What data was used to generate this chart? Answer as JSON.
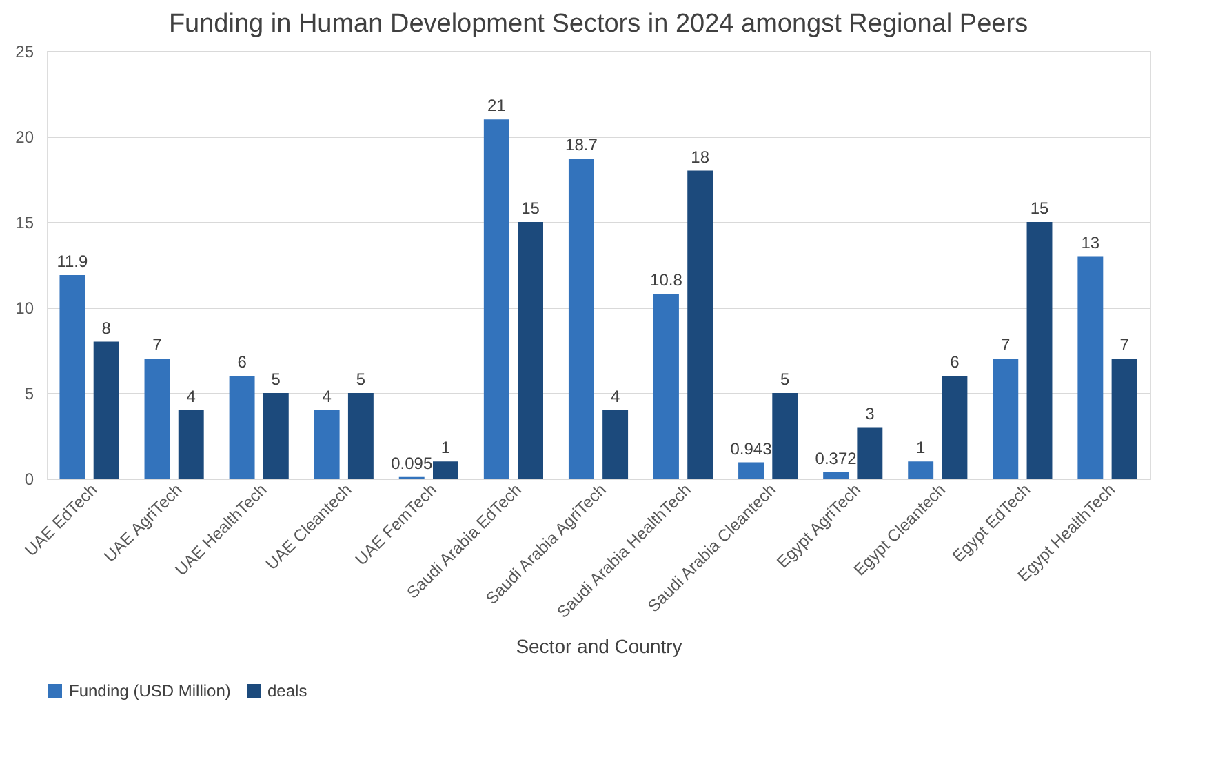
{
  "chart_data": {
    "type": "bar",
    "title": "Funding in Human Development Sectors in 2024 amongst Regional Peers",
    "xlabel": "Sector and Country",
    "categories": [
      "UAE EdTech",
      "UAE AgriTech",
      "UAE HealthTech",
      "UAE Cleantech",
      "UAE FemTech",
      "Saudi Arabia EdTech",
      "Saudi Arabia AgriTech",
      "Saudi Arabia HealthTech",
      "Saudi Arabia Cleantech",
      "Egypt AgriTech",
      "Egypt Cleantech",
      "Egypt EdTech",
      "Egypt HealthTech"
    ],
    "series": [
      {
        "name": "Funding (USD Million)",
        "color": "#3373bc",
        "values": [
          11.9,
          7,
          6,
          4,
          0.095,
          21,
          18.7,
          10.8,
          0.943,
          0.372,
          1,
          7,
          13
        ]
      },
      {
        "name": "deals",
        "color": "#1c4a7c",
        "values": [
          8,
          4,
          5,
          5,
          1,
          15,
          4,
          18,
          5,
          3,
          6,
          15,
          7
        ]
      }
    ],
    "ylim": [
      0,
      25
    ],
    "yticks": [
      0,
      5,
      10,
      15,
      20,
      25
    ],
    "grid": "y",
    "legend": "bottom",
    "data_labels": true
  }
}
